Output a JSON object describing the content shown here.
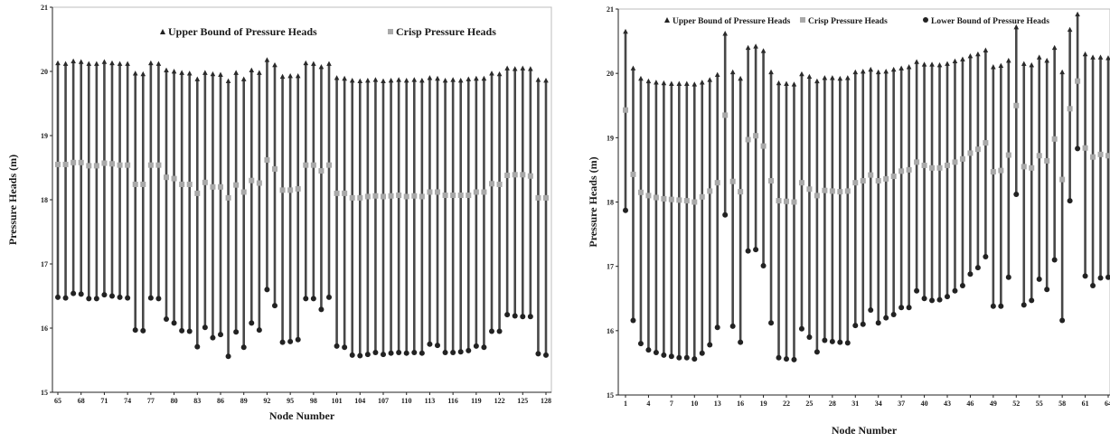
{
  "chart_data": [
    {
      "type": "range",
      "xlabel": "Node Number",
      "ylabel": "Pressure Heads (m)",
      "ylim": [
        15,
        21
      ],
      "yticks": [
        "15",
        "16",
        "17",
        "18",
        "19",
        "20",
        "21"
      ],
      "top_tick_label": "21",
      "xticks": [
        65,
        68,
        71,
        74,
        77,
        80,
        83,
        86,
        89,
        92,
        95,
        98,
        101,
        104,
        107,
        110,
        113,
        116,
        119,
        122,
        125,
        128
      ],
      "legend": {
        "position": "top",
        "entries": [
          "Upper Bound of Pressure Heads",
          "Crisp Pressure Heads"
        ]
      },
      "x": [
        65,
        66,
        67,
        68,
        69,
        70,
        71,
        72,
        73,
        74,
        75,
        76,
        77,
        78,
        79,
        80,
        81,
        82,
        83,
        84,
        85,
        86,
        87,
        88,
        89,
        90,
        91,
        92,
        93,
        94,
        95,
        96,
        97,
        98,
        99,
        100,
        101,
        102,
        103,
        104,
        105,
        106,
        107,
        108,
        109,
        110,
        111,
        112,
        113,
        114,
        115,
        116,
        117,
        118,
        119,
        120,
        121,
        122,
        123,
        124,
        125,
        126,
        127,
        128
      ],
      "series": [
        {
          "name": "Upper Bound of Pressure Heads",
          "values": [
            20.13,
            20.12,
            20.16,
            20.15,
            20.12,
            20.12,
            20.15,
            20.13,
            20.12,
            20.12,
            19.97,
            19.96,
            20.13,
            20.12,
            20.02,
            20.0,
            19.98,
            19.97,
            19.88,
            19.98,
            19.96,
            19.95,
            19.85,
            19.98,
            19.88,
            20.02,
            19.98,
            20.18,
            20.1,
            19.92,
            19.93,
            19.93,
            20.13,
            20.12,
            20.07,
            20.12,
            19.9,
            19.89,
            19.86,
            19.85,
            19.86,
            19.87,
            19.85,
            19.86,
            19.87,
            19.86,
            19.87,
            19.86,
            19.9,
            19.89,
            19.86,
            19.87,
            19.86,
            19.88,
            19.89,
            19.89,
            19.97,
            19.96,
            20.05,
            20.04,
            20.05,
            20.04,
            19.87,
            19.86
          ]
        },
        {
          "name": "Crisp Pressure Heads",
          "values": [
            18.55,
            18.55,
            18.58,
            18.58,
            18.53,
            18.53,
            18.57,
            18.56,
            18.54,
            18.54,
            18.24,
            18.24,
            18.54,
            18.54,
            18.35,
            18.33,
            18.24,
            18.24,
            18.1,
            18.27,
            18.2,
            18.2,
            18.03,
            18.23,
            18.12,
            18.3,
            18.26,
            18.62,
            18.48,
            18.15,
            18.15,
            18.17,
            18.54,
            18.54,
            18.45,
            18.54,
            18.1,
            18.1,
            18.03,
            18.03,
            18.05,
            18.06,
            18.05,
            18.06,
            18.07,
            18.05,
            18.06,
            18.05,
            18.12,
            18.12,
            18.07,
            18.07,
            18.07,
            18.07,
            18.12,
            18.12,
            18.25,
            18.24,
            18.38,
            18.39,
            18.39,
            18.37,
            18.03,
            18.03
          ]
        },
        {
          "name": "Lower Bound",
          "values": [
            16.48,
            16.47,
            16.54,
            16.53,
            16.46,
            16.46,
            16.52,
            16.5,
            16.48,
            16.47,
            15.97,
            15.96,
            16.47,
            16.46,
            16.14,
            16.08,
            15.96,
            15.95,
            15.71,
            16.01,
            15.85,
            15.9,
            15.56,
            15.94,
            15.7,
            16.08,
            15.97,
            16.6,
            16.35,
            15.78,
            15.79,
            15.82,
            16.46,
            16.46,
            16.29,
            16.48,
            15.72,
            15.7,
            15.58,
            15.57,
            15.59,
            15.62,
            15.59,
            15.61,
            15.62,
            15.61,
            15.62,
            15.61,
            15.75,
            15.73,
            15.62,
            15.62,
            15.63,
            15.65,
            15.72,
            15.7,
            15.95,
            15.95,
            16.21,
            16.19,
            16.18,
            16.18,
            15.6,
            15.58
          ]
        }
      ]
    },
    {
      "type": "range",
      "xlabel": "Node Number",
      "ylabel": "Pressure Heads (m)",
      "ylim": [
        15,
        21
      ],
      "yticks": [
        "15",
        "16",
        "17",
        "18",
        "19",
        "20",
        "21"
      ],
      "xticks": [
        1,
        4,
        7,
        10,
        13,
        16,
        19,
        22,
        25,
        28,
        31,
        34,
        37,
        40,
        43,
        46,
        49,
        52,
        55,
        58,
        61,
        64
      ],
      "legend": {
        "position": "top",
        "entries": [
          "Upper Bound of Pressure Heads",
          "Crisp Pressure Heads",
          "Lower Bound of Pressure Heads"
        ]
      },
      "x": [
        1,
        2,
        3,
        4,
        5,
        6,
        7,
        8,
        9,
        10,
        11,
        12,
        13,
        14,
        15,
        16,
        17,
        18,
        19,
        20,
        21,
        22,
        23,
        24,
        25,
        26,
        27,
        28,
        29,
        30,
        31,
        32,
        33,
        34,
        35,
        36,
        37,
        38,
        39,
        40,
        41,
        42,
        43,
        44,
        45,
        46,
        47,
        48,
        49,
        50,
        51,
        52,
        53,
        54,
        55,
        56,
        57,
        58,
        59,
        60,
        61,
        62,
        63,
        64
      ],
      "series": [
        {
          "name": "Upper Bound of Pressure Heads",
          "values": [
            20.65,
            20.08,
            19.92,
            19.88,
            19.86,
            19.85,
            19.84,
            19.84,
            19.84,
            19.83,
            19.86,
            19.9,
            19.98,
            20.62,
            20.02,
            19.92,
            20.4,
            20.42,
            20.35,
            20.02,
            19.85,
            19.84,
            19.83,
            19.99,
            19.95,
            19.88,
            19.93,
            19.93,
            19.92,
            19.93,
            20.02,
            20.03,
            20.06,
            20.02,
            20.03,
            20.06,
            20.08,
            20.1,
            20.18,
            20.14,
            20.14,
            20.13,
            20.15,
            20.19,
            20.22,
            20.27,
            20.3,
            20.36,
            20.1,
            20.12,
            20.2,
            20.72,
            20.15,
            20.13,
            20.25,
            20.2,
            20.4,
            20.02,
            20.68,
            20.92,
            20.3,
            20.25,
            20.25,
            20.24
          ]
        },
        {
          "name": "Crisp Pressure Heads",
          "values": [
            19.43,
            18.43,
            18.15,
            18.1,
            18.07,
            18.05,
            18.04,
            18.03,
            18.02,
            18.0,
            18.08,
            18.17,
            18.3,
            19.35,
            18.32,
            18.16,
            18.97,
            19.03,
            18.87,
            18.33,
            18.02,
            18.01,
            18.0,
            18.3,
            18.2,
            18.1,
            18.18,
            18.17,
            18.16,
            18.17,
            18.3,
            18.33,
            18.42,
            18.33,
            18.36,
            18.4,
            18.48,
            18.5,
            18.62,
            18.57,
            18.53,
            18.53,
            18.57,
            18.62,
            18.67,
            18.76,
            18.82,
            18.92,
            18.47,
            18.49,
            18.73,
            19.5,
            18.55,
            18.53,
            18.72,
            18.64,
            18.98,
            18.35,
            19.45,
            19.88,
            18.84,
            18.7,
            18.74,
            18.72
          ]
        },
        {
          "name": "Lower Bound of Pressure Heads",
          "values": [
            17.87,
            16.16,
            15.8,
            15.7,
            15.66,
            15.62,
            15.6,
            15.58,
            15.58,
            15.56,
            15.65,
            15.78,
            16.05,
            17.8,
            16.07,
            15.82,
            17.24,
            17.26,
            17.01,
            16.12,
            15.58,
            15.56,
            15.55,
            16.03,
            15.9,
            15.67,
            15.85,
            15.83,
            15.82,
            15.81,
            16.08,
            16.1,
            16.32,
            16.12,
            16.2,
            16.25,
            16.36,
            16.36,
            16.62,
            16.5,
            16.47,
            16.48,
            16.53,
            16.62,
            16.7,
            16.88,
            16.98,
            17.15,
            16.38,
            16.38,
            16.83,
            18.12,
            16.4,
            16.47,
            16.8,
            16.64,
            17.1,
            16.16,
            18.02,
            18.83,
            16.85,
            16.7,
            16.82,
            16.83
          ]
        }
      ]
    }
  ]
}
